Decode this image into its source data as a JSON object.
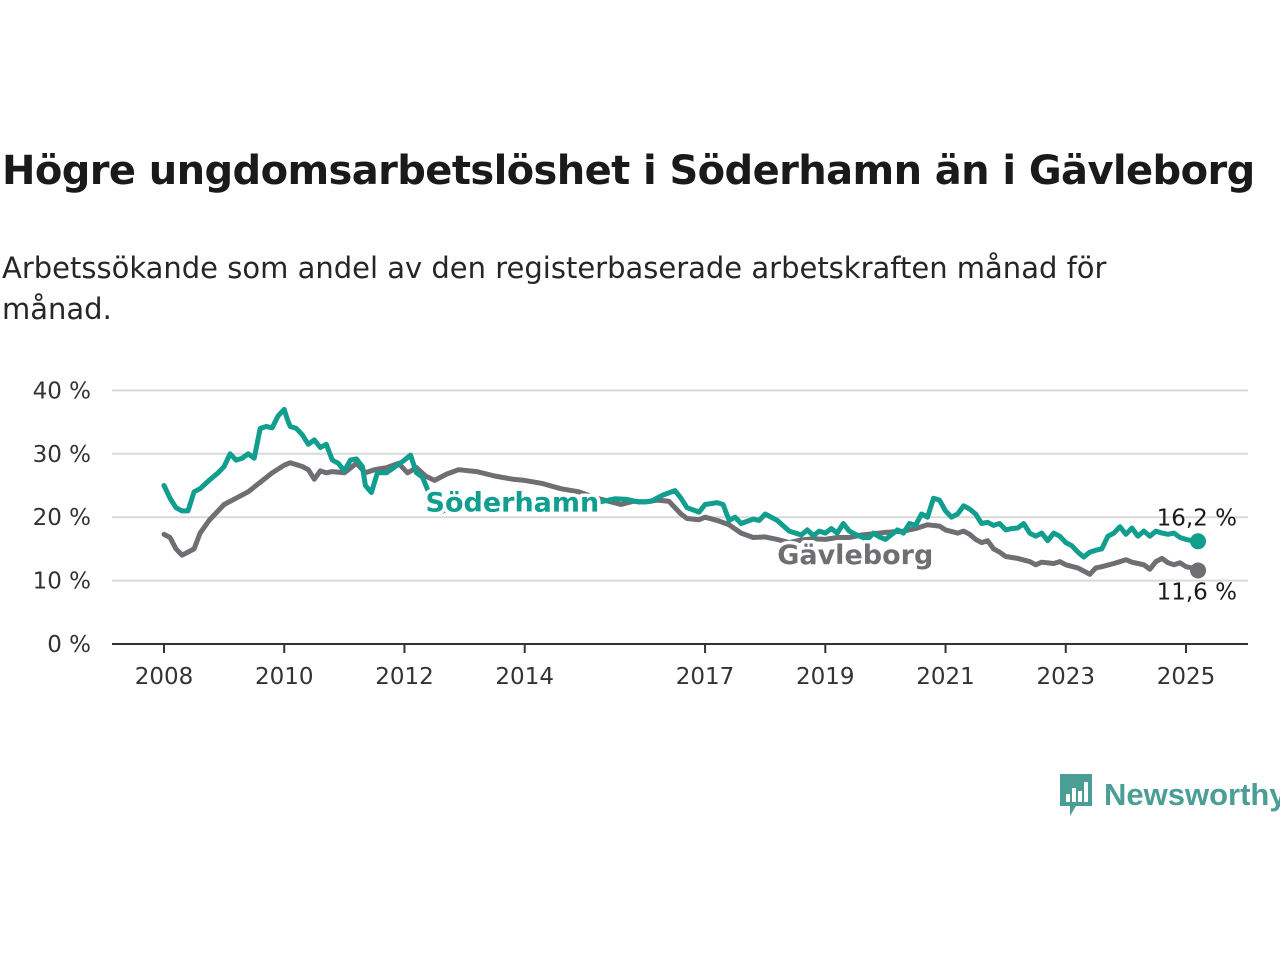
{
  "title": "Högre ungdomsarbetslöshet i Söderhamn än i Gävleborg",
  "subtitle": "Arbetssökande som andel av den registerbaserade arbetskraften månad för månad.",
  "brand": {
    "name": "Newsworthy",
    "color": "#4a9e96"
  },
  "chart_data": {
    "type": "line",
    "ylim": [
      0,
      40
    ],
    "y_ticks": [
      0,
      10,
      20,
      30,
      40
    ],
    "y_tick_labels": [
      "0 %",
      "10 %",
      "20 %",
      "30 %",
      "40 %"
    ],
    "x_ticks": [
      2008,
      2010,
      2012,
      2014,
      2017,
      2019,
      2021,
      2023,
      2025
    ],
    "grid": true,
    "series": [
      {
        "name": "Söderhamn",
        "color": "#119e8f",
        "end_label": "16,2 %",
        "points": [
          [
            2008.0,
            25
          ],
          [
            2008.1,
            23
          ],
          [
            2008.2,
            21.5
          ],
          [
            2008.3,
            21
          ],
          [
            2008.4,
            21
          ],
          [
            2008.5,
            24
          ],
          [
            2008.6,
            24.5
          ],
          [
            2008.75,
            25.8
          ],
          [
            2008.9,
            27
          ],
          [
            2009.0,
            28
          ],
          [
            2009.1,
            30
          ],
          [
            2009.2,
            29
          ],
          [
            2009.3,
            29.3
          ],
          [
            2009.4,
            30
          ],
          [
            2009.5,
            29.3
          ],
          [
            2009.6,
            34
          ],
          [
            2009.7,
            34.3
          ],
          [
            2009.8,
            34.1
          ],
          [
            2009.9,
            36
          ],
          [
            2009.95,
            36.5
          ],
          [
            2010.0,
            37
          ],
          [
            2010.05,
            35.5
          ],
          [
            2010.1,
            34.3
          ],
          [
            2010.2,
            34
          ],
          [
            2010.3,
            33
          ],
          [
            2010.4,
            31.5
          ],
          [
            2010.5,
            32.2
          ],
          [
            2010.6,
            31
          ],
          [
            2010.7,
            31.5
          ],
          [
            2010.8,
            29
          ],
          [
            2010.9,
            28.5
          ],
          [
            2011.0,
            27.3
          ],
          [
            2011.1,
            29
          ],
          [
            2011.2,
            29.2
          ],
          [
            2011.3,
            28
          ],
          [
            2011.35,
            25
          ],
          [
            2011.45,
            23.9
          ],
          [
            2011.55,
            27
          ],
          [
            2011.7,
            27
          ],
          [
            2011.85,
            28
          ],
          [
            2012.0,
            29
          ],
          [
            2012.1,
            29.8
          ],
          [
            2012.2,
            27
          ],
          [
            2012.3,
            26.3
          ],
          [
            2012.4,
            24
          ],
          [
            2012.5,
            21.5
          ],
          [
            2012.6,
            20.8
          ],
          [
            2012.75,
            21.5
          ],
          [
            2012.9,
            22
          ],
          [
            2013.2,
            22.4
          ],
          [
            2013.6,
            22.9
          ],
          [
            2014.0,
            22.6
          ],
          [
            2014.4,
            22.8
          ],
          [
            2014.8,
            22.9
          ],
          [
            2015.2,
            22.3
          ],
          [
            2015.5,
            22.9
          ],
          [
            2015.7,
            22.8
          ],
          [
            2015.9,
            22.4
          ],
          [
            2016.1,
            22.5
          ],
          [
            2016.3,
            23.5
          ],
          [
            2016.5,
            24.2
          ],
          [
            2016.6,
            23
          ],
          [
            2016.7,
            21.5
          ],
          [
            2016.9,
            20.8
          ],
          [
            2017.0,
            22
          ],
          [
            2017.2,
            22.3
          ],
          [
            2017.3,
            22
          ],
          [
            2017.4,
            19.5
          ],
          [
            2017.5,
            20
          ],
          [
            2017.6,
            19
          ],
          [
            2017.8,
            19.7
          ],
          [
            2017.9,
            19.5
          ],
          [
            2018.0,
            20.5
          ],
          [
            2018.2,
            19.5
          ],
          [
            2018.4,
            17.8
          ],
          [
            2018.6,
            17.2
          ],
          [
            2018.7,
            18
          ],
          [
            2018.8,
            17.1
          ],
          [
            2018.9,
            17.8
          ],
          [
            2019.0,
            17.5
          ],
          [
            2019.1,
            18.2
          ],
          [
            2019.2,
            17.5
          ],
          [
            2019.3,
            19
          ],
          [
            2019.4,
            17.8
          ],
          [
            2019.5,
            17.3
          ],
          [
            2019.7,
            16.5
          ],
          [
            2019.8,
            17.5
          ],
          [
            2019.9,
            16.9
          ],
          [
            2020.0,
            16.5
          ],
          [
            2020.2,
            18
          ],
          [
            2020.3,
            17.5
          ],
          [
            2020.4,
            19
          ],
          [
            2020.5,
            18.7
          ],
          [
            2020.6,
            20.5
          ],
          [
            2020.7,
            20
          ],
          [
            2020.8,
            23
          ],
          [
            2020.9,
            22.7
          ],
          [
            2021.0,
            21
          ],
          [
            2021.1,
            20
          ],
          [
            2021.2,
            20.5
          ],
          [
            2021.3,
            21.8
          ],
          [
            2021.4,
            21.3
          ],
          [
            2021.5,
            20.5
          ],
          [
            2021.6,
            19
          ],
          [
            2021.7,
            19.2
          ],
          [
            2021.8,
            18.7
          ],
          [
            2021.9,
            19
          ],
          [
            2022.0,
            18
          ],
          [
            2022.1,
            18.2
          ],
          [
            2022.2,
            18.3
          ],
          [
            2022.3,
            19
          ],
          [
            2022.4,
            17.5
          ],
          [
            2022.5,
            17
          ],
          [
            2022.6,
            17.5
          ],
          [
            2022.7,
            16.3
          ],
          [
            2022.8,
            17.5
          ],
          [
            2022.9,
            17
          ],
          [
            2023.0,
            16
          ],
          [
            2023.1,
            15.5
          ],
          [
            2023.2,
            14.5
          ],
          [
            2023.3,
            13.7
          ],
          [
            2023.4,
            14.5
          ],
          [
            2023.5,
            14.8
          ],
          [
            2023.6,
            15
          ],
          [
            2023.7,
            17
          ],
          [
            2023.8,
            17.5
          ],
          [
            2023.9,
            18.5
          ],
          [
            2024.0,
            17.3
          ],
          [
            2024.1,
            18.3
          ],
          [
            2024.2,
            17
          ],
          [
            2024.3,
            17.8
          ],
          [
            2024.4,
            17
          ],
          [
            2024.5,
            17.8
          ],
          [
            2024.6,
            17.5
          ],
          [
            2024.7,
            17.3
          ],
          [
            2024.8,
            17.5
          ],
          [
            2024.9,
            16.8
          ],
          [
            2025.0,
            16.5
          ],
          [
            2025.1,
            16.3
          ],
          [
            2025.2,
            16.2
          ]
        ]
      },
      {
        "name": "Gävleborg",
        "color": "#6e6e73",
        "end_label": "11,6 %",
        "points": [
          [
            2008.0,
            17.3
          ],
          [
            2008.1,
            16.8
          ],
          [
            2008.2,
            15
          ],
          [
            2008.3,
            14
          ],
          [
            2008.4,
            14.5
          ],
          [
            2008.5,
            15
          ],
          [
            2008.6,
            17.5
          ],
          [
            2008.75,
            19.5
          ],
          [
            2008.9,
            21
          ],
          [
            2009.0,
            22
          ],
          [
            2009.2,
            23
          ],
          [
            2009.4,
            24
          ],
          [
            2009.6,
            25.5
          ],
          [
            2009.8,
            27
          ],
          [
            2010.0,
            28.2
          ],
          [
            2010.1,
            28.6
          ],
          [
            2010.2,
            28.3
          ],
          [
            2010.3,
            28
          ],
          [
            2010.4,
            27.5
          ],
          [
            2010.5,
            26
          ],
          [
            2010.6,
            27.3
          ],
          [
            2010.7,
            27
          ],
          [
            2010.8,
            27.2
          ],
          [
            2011.0,
            27
          ],
          [
            2011.2,
            28.5
          ],
          [
            2011.35,
            27
          ],
          [
            2011.5,
            27.5
          ],
          [
            2011.7,
            27.8
          ],
          [
            2011.9,
            28.5
          ],
          [
            2012.05,
            27
          ],
          [
            2012.2,
            27.8
          ],
          [
            2012.35,
            26.5
          ],
          [
            2012.5,
            25.8
          ],
          [
            2012.7,
            26.8
          ],
          [
            2012.9,
            27.5
          ],
          [
            2013.2,
            27.2
          ],
          [
            2013.5,
            26.5
          ],
          [
            2013.8,
            26
          ],
          [
            2014.0,
            25.8
          ],
          [
            2014.3,
            25.3
          ],
          [
            2014.6,
            24.5
          ],
          [
            2014.9,
            24
          ],
          [
            2015.2,
            23
          ],
          [
            2015.4,
            22.5
          ],
          [
            2015.6,
            22
          ],
          [
            2015.8,
            22.5
          ],
          [
            2016.0,
            22.4
          ],
          [
            2016.2,
            22.7
          ],
          [
            2016.4,
            22.5
          ],
          [
            2016.5,
            21.5
          ],
          [
            2016.6,
            20.5
          ],
          [
            2016.7,
            19.8
          ],
          [
            2016.9,
            19.6
          ],
          [
            2017.0,
            20
          ],
          [
            2017.2,
            19.5
          ],
          [
            2017.4,
            18.8
          ],
          [
            2017.6,
            17.5
          ],
          [
            2017.8,
            16.8
          ],
          [
            2018.0,
            16.9
          ],
          [
            2018.2,
            16.5
          ],
          [
            2018.4,
            16
          ],
          [
            2018.6,
            16.4
          ],
          [
            2018.8,
            16.6
          ],
          [
            2019.0,
            16.5
          ],
          [
            2019.2,
            16.8
          ],
          [
            2019.4,
            16.8
          ],
          [
            2019.6,
            17.2
          ],
          [
            2019.8,
            17.4
          ],
          [
            2020.0,
            17.6
          ],
          [
            2020.3,
            17.8
          ],
          [
            2020.5,
            18.2
          ],
          [
            2020.7,
            18.8
          ],
          [
            2020.9,
            18.6
          ],
          [
            2021.0,
            18
          ],
          [
            2021.2,
            17.5
          ],
          [
            2021.3,
            17.8
          ],
          [
            2021.4,
            17.3
          ],
          [
            2021.5,
            16.5
          ],
          [
            2021.6,
            16
          ],
          [
            2021.7,
            16.3
          ],
          [
            2021.8,
            15
          ],
          [
            2021.9,
            14.5
          ],
          [
            2022.0,
            13.8
          ],
          [
            2022.2,
            13.5
          ],
          [
            2022.4,
            13
          ],
          [
            2022.5,
            12.5
          ],
          [
            2022.6,
            12.9
          ],
          [
            2022.8,
            12.7
          ],
          [
            2022.9,
            13
          ],
          [
            2023.0,
            12.5
          ],
          [
            2023.2,
            12
          ],
          [
            2023.3,
            11.5
          ],
          [
            2023.4,
            11
          ],
          [
            2023.5,
            12
          ],
          [
            2023.6,
            12.2
          ],
          [
            2023.8,
            12.7
          ],
          [
            2024.0,
            13.3
          ],
          [
            2024.1,
            12.9
          ],
          [
            2024.2,
            12.7
          ],
          [
            2024.3,
            12.5
          ],
          [
            2024.4,
            11.8
          ],
          [
            2024.5,
            13
          ],
          [
            2024.6,
            13.5
          ],
          [
            2024.7,
            12.8
          ],
          [
            2024.8,
            12.5
          ],
          [
            2024.9,
            12.8
          ],
          [
            2025.0,
            12.2
          ],
          [
            2025.1,
            12
          ],
          [
            2025.2,
            11.6
          ]
        ]
      }
    ]
  }
}
